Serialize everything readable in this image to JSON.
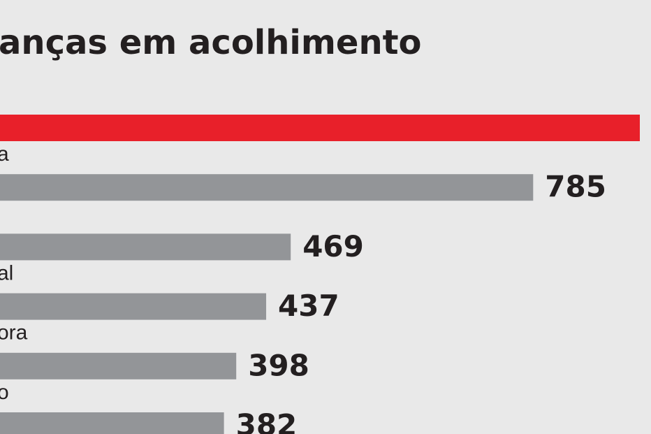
{
  "chart_data": {
    "type": "bar",
    "orientation": "horizontal",
    "title": "anças em acolhimento",
    "categories": [
      null,
      "a",
      null,
      "al",
      "ora",
      "o"
    ],
    "values": [
      924,
      785,
      469,
      437,
      398,
      382
    ],
    "value_labels": [
      null,
      "785",
      "469",
      "437",
      "398",
      "382"
    ],
    "colors": [
      "#e8202a",
      "#939598",
      "#939598",
      "#939598",
      "#939598",
      "#939598"
    ],
    "xlim": [
      0,
      924
    ]
  }
}
